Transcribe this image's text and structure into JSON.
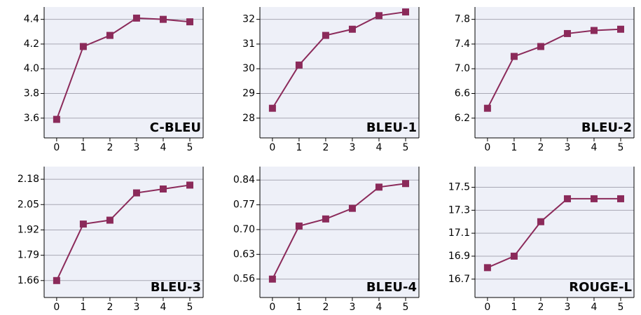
{
  "chart_data": [
    {
      "type": "line",
      "title": "C-BLEU",
      "x": [
        0,
        1,
        2,
        3,
        4,
        5
      ],
      "values": [
        3.59,
        4.18,
        4.27,
        4.41,
        4.4,
        4.38
      ],
      "color": "#8b2a5a",
      "xlim": [
        -0.47,
        5.5
      ],
      "xticks": [
        0,
        1,
        2,
        3,
        4,
        5
      ],
      "ylim": [
        3.44,
        4.5
      ],
      "yticks": [
        3.6,
        3.8,
        {
          "value": 4,
          "label": "4.0"
        },
        4.2,
        4.4
      ],
      "grid": true
    },
    {
      "type": "line",
      "title": "BLEU-1",
      "x": [
        0,
        1,
        2,
        3,
        4,
        5
      ],
      "values": [
        28.4,
        30.15,
        31.35,
        31.6,
        32.15,
        32.3
      ],
      "color": "#8b2a5a",
      "xlim": [
        -0.47,
        5.5
      ],
      "xticks": [
        0,
        1,
        2,
        3,
        4,
        5
      ],
      "ylim": [
        27.2,
        32.5
      ],
      "yticks": [
        28,
        29,
        30,
        31,
        32
      ],
      "grid": true
    },
    {
      "type": "line",
      "title": "BLEU-2",
      "x": [
        0,
        1,
        2,
        3,
        4,
        5
      ],
      "values": [
        6.36,
        7.2,
        7.36,
        7.57,
        7.62,
        7.64
      ],
      "color": "#8b2a5a",
      "xlim": [
        -0.47,
        5.5
      ],
      "xticks": [
        0,
        1,
        2,
        3,
        4,
        5
      ],
      "ylim": [
        5.88,
        8.0
      ],
      "yticks": [
        6.2,
        6.6,
        {
          "value": 7,
          "label": "7.0"
        },
        7.4,
        7.8
      ],
      "grid": true
    },
    {
      "type": "line",
      "title": "BLEU-3",
      "x": [
        0,
        1,
        2,
        3,
        4,
        5
      ],
      "values": [
        1.66,
        1.95,
        1.97,
        2.11,
        2.13,
        2.15
      ],
      "color": "#8b2a5a",
      "xlim": [
        -0.47,
        5.5
      ],
      "xticks": [
        0,
        1,
        2,
        3,
        4,
        5
      ],
      "ylim": [
        1.573,
        2.245
      ],
      "yticks": [
        1.66,
        1.79,
        1.92,
        2.05,
        2.18
      ],
      "grid": true
    },
    {
      "type": "line",
      "title": "BLEU-4",
      "x": [
        0,
        1,
        2,
        3,
        4,
        5
      ],
      "values": [
        0.56,
        0.71,
        0.73,
        0.76,
        0.82,
        0.83
      ],
      "color": "#8b2a5a",
      "xlim": [
        -0.47,
        5.5
      ],
      "xticks": [
        0,
        1,
        2,
        3,
        4,
        5
      ],
      "ylim": [
        0.508,
        0.878
      ],
      "yticks": [
        0.56,
        0.63,
        {
          "value": 0.7,
          "label": "0.70"
        },
        0.77,
        0.84
      ],
      "grid": true
    },
    {
      "type": "line",
      "title": "ROUGE-L",
      "x": [
        0,
        1,
        2,
        3,
        4,
        5
      ],
      "values": [
        16.8,
        16.9,
        17.2,
        17.4,
        17.4,
        17.4
      ],
      "color": "#8b2a5a",
      "xlim": [
        -0.47,
        5.5
      ],
      "xticks": [
        0,
        1,
        2,
        3,
        4,
        5
      ],
      "ylim": [
        16.54,
        17.68
      ],
      "yticks": [
        16.7,
        16.9,
        17.1,
        17.3,
        17.5
      ],
      "grid": true
    }
  ]
}
